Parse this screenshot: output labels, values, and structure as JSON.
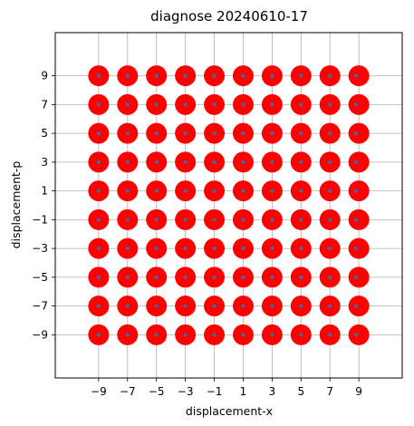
{
  "chart_data": {
    "type": "scatter",
    "title": "diagnose 20240610-17",
    "xlabel": "displacement-x",
    "ylabel": "displacement-p",
    "xlim": [
      -12,
      12
    ],
    "ylim": [
      -12,
      12
    ],
    "xticks": [
      -9,
      -7,
      -5,
      -3,
      -1,
      1,
      3,
      5,
      7,
      9
    ],
    "yticks": [
      -9,
      -7,
      -5,
      -3,
      -1,
      1,
      3,
      5,
      7,
      9
    ],
    "xtick_labels": [
      "−9",
      "−7",
      "−5",
      "−3",
      "−1",
      "1",
      "3",
      "5",
      "7",
      "9"
    ],
    "ytick_labels": [
      "−9",
      "−7",
      "−5",
      "−3",
      "−1",
      "1",
      "3",
      "5",
      "7",
      "9"
    ],
    "grid": true,
    "series": [
      {
        "marker": "large-circle",
        "color": "#ff0000",
        "x_values": [
          -9,
          -7,
          -5,
          -3,
          -1,
          1,
          3,
          5,
          7,
          9
        ],
        "y_values": [
          -9,
          -7,
          -5,
          -3,
          -1,
          1,
          3,
          5,
          7,
          9
        ],
        "layout": "full-grid"
      },
      {
        "marker": "small-dot",
        "color": "#1f77b4",
        "points": [
          {
            "x": -9.0,
            "y": 9.0
          },
          {
            "x": -7.0,
            "y": 9.0
          },
          {
            "x": -5.0,
            "y": 9.0
          },
          {
            "x": -3.0,
            "y": 9.0
          },
          {
            "x": -1.0,
            "y": 9.0
          },
          {
            "x": 1.0,
            "y": 9.0
          },
          {
            "x": 3.0,
            "y": 9.0
          },
          {
            "x": 5.0,
            "y": 9.0
          },
          {
            "x": 7.0,
            "y": 9.0
          },
          {
            "x": 8.8,
            "y": 9.0
          },
          {
            "x": -9.0,
            "y": 7.0
          },
          {
            "x": -7.0,
            "y": 7.0
          },
          {
            "x": -5.0,
            "y": 7.0
          },
          {
            "x": -3.0,
            "y": 7.0
          },
          {
            "x": -1.0,
            "y": 7.0
          },
          {
            "x": 1.0,
            "y": 7.0
          },
          {
            "x": 3.0,
            "y": 7.0
          },
          {
            "x": 5.0,
            "y": 7.0
          },
          {
            "x": 7.0,
            "y": 7.0
          },
          {
            "x": 8.8,
            "y": 7.0
          },
          {
            "x": -9.0,
            "y": 5.0
          },
          {
            "x": -7.0,
            "y": 5.0
          },
          {
            "x": -5.0,
            "y": 5.0
          },
          {
            "x": -3.0,
            "y": 5.0
          },
          {
            "x": -1.0,
            "y": 5.0
          },
          {
            "x": 1.0,
            "y": 5.0
          },
          {
            "x": 3.0,
            "y": 5.0
          },
          {
            "x": 5.0,
            "y": 5.0
          },
          {
            "x": 7.0,
            "y": 5.0
          },
          {
            "x": 8.8,
            "y": 5.0
          },
          {
            "x": -9.0,
            "y": 3.0
          },
          {
            "x": -7.0,
            "y": 3.0
          },
          {
            "x": -5.0,
            "y": 3.0
          },
          {
            "x": -3.0,
            "y": 3.0
          },
          {
            "x": -1.0,
            "y": 3.0
          },
          {
            "x": 1.0,
            "y": 3.0
          },
          {
            "x": 3.0,
            "y": 3.0
          },
          {
            "x": 5.0,
            "y": 3.0
          },
          {
            "x": 7.0,
            "y": 3.0
          },
          {
            "x": 8.8,
            "y": 3.0
          },
          {
            "x": -9.0,
            "y": 1.0
          },
          {
            "x": -7.0,
            "y": 1.0
          },
          {
            "x": -5.0,
            "y": 1.0
          },
          {
            "x": -3.0,
            "y": 1.0
          },
          {
            "x": -1.0,
            "y": 1.0
          },
          {
            "x": 1.0,
            "y": 1.0
          },
          {
            "x": 3.0,
            "y": 1.0
          },
          {
            "x": 5.0,
            "y": 1.0
          },
          {
            "x": 7.0,
            "y": 1.0
          },
          {
            "x": 8.8,
            "y": 1.0
          },
          {
            "x": -9.0,
            "y": -1.0
          },
          {
            "x": -7.0,
            "y": -1.0
          },
          {
            "x": -5.0,
            "y": -1.0
          },
          {
            "x": -3.0,
            "y": -1.0
          },
          {
            "x": -1.0,
            "y": -1.0
          },
          {
            "x": 1.0,
            "y": -1.0
          },
          {
            "x": 3.0,
            "y": -1.0
          },
          {
            "x": 5.0,
            "y": -1.0
          },
          {
            "x": 7.0,
            "y": -1.0
          },
          {
            "x": 8.8,
            "y": -1.0
          },
          {
            "x": -9.0,
            "y": -3.0
          },
          {
            "x": -7.0,
            "y": -3.0
          },
          {
            "x": -5.0,
            "y": -3.0
          },
          {
            "x": -3.0,
            "y": -3.0
          },
          {
            "x": -1.0,
            "y": -3.0
          },
          {
            "x": 1.0,
            "y": -3.0
          },
          {
            "x": 3.0,
            "y": -3.0
          },
          {
            "x": 5.0,
            "y": -3.0
          },
          {
            "x": 7.0,
            "y": -3.0
          },
          {
            "x": 8.8,
            "y": -3.0
          },
          {
            "x": -9.0,
            "y": -5.0
          },
          {
            "x": -7.0,
            "y": -5.0
          },
          {
            "x": -5.0,
            "y": -5.0
          },
          {
            "x": -3.0,
            "y": -5.0
          },
          {
            "x": -1.0,
            "y": -5.0
          },
          {
            "x": 1.0,
            "y": -5.0
          },
          {
            "x": 3.0,
            "y": -5.0
          },
          {
            "x": 5.0,
            "y": -5.0
          },
          {
            "x": 7.0,
            "y": -5.0
          },
          {
            "x": 8.8,
            "y": -5.0
          },
          {
            "x": -9.0,
            "y": -7.0
          },
          {
            "x": -7.0,
            "y": -7.0
          },
          {
            "x": -5.0,
            "y": -7.0
          },
          {
            "x": -3.0,
            "y": -7.0
          },
          {
            "x": -1.0,
            "y": -7.0
          },
          {
            "x": 1.0,
            "y": -7.0
          },
          {
            "x": 3.0,
            "y": -7.0
          },
          {
            "x": 5.0,
            "y": -7.0
          },
          {
            "x": 7.0,
            "y": -7.0
          },
          {
            "x": 8.8,
            "y": -7.0
          },
          {
            "x": -9.0,
            "y": -9.0
          },
          {
            "x": -7.0,
            "y": -9.0
          },
          {
            "x": -5.0,
            "y": -9.0
          },
          {
            "x": -3.0,
            "y": -9.0
          },
          {
            "x": -1.0,
            "y": -9.0
          },
          {
            "x": 1.0,
            "y": -9.0
          },
          {
            "x": 3.0,
            "y": -9.0
          },
          {
            "x": 5.0,
            "y": -9.0
          },
          {
            "x": 7.0,
            "y": -9.0
          },
          {
            "x": 8.8,
            "y": -9.0
          }
        ]
      }
    ]
  }
}
